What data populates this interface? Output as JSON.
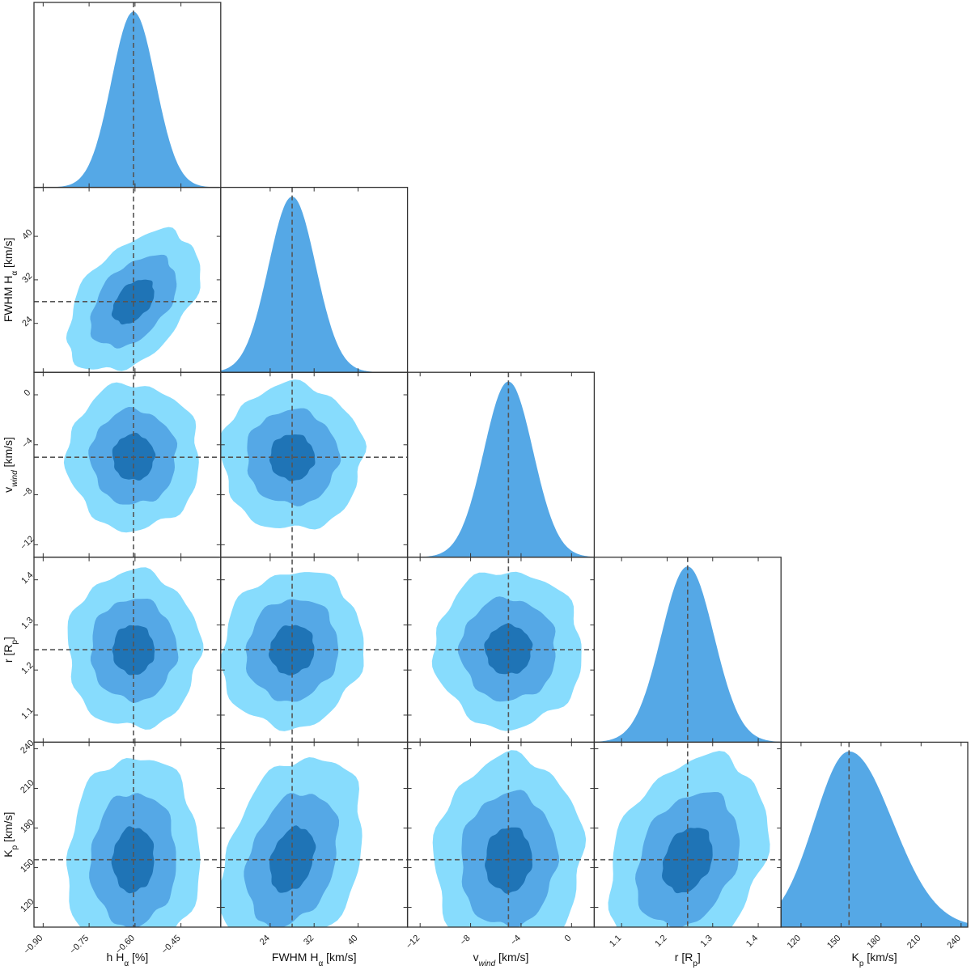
{
  "chart_data": {
    "type": "corner",
    "colors": {
      "sigma3": "#87dcfd",
      "sigma2": "#55a8e6",
      "sigma1": "#1f74b6",
      "histogram": "#55a8e6",
      "truth_line": "#555555"
    },
    "parameters": [
      {
        "id": "h",
        "xlabel_main": "h H",
        "xlabel_sub": "α",
        "xlabel_tail": " [%]",
        "ylabel_main": "",
        "ylabel_sub": "",
        "ylabel_tail": "",
        "range": [
          -0.93,
          -0.32
        ],
        "ticks": [
          -0.9,
          -0.75,
          -0.6,
          -0.45
        ],
        "tick_labels": [
          "−0.90",
          "−0.75",
          "−0.60",
          "−0.45"
        ],
        "best": -0.605,
        "sigma": 0.072
      },
      {
        "id": "fwhm",
        "xlabel_main": "FWHM H",
        "xlabel_sub": "α",
        "xlabel_tail": " [km/s]",
        "ylabel_main": "FWHM H",
        "ylabel_sub": "α",
        "ylabel_tail": " [km/s]",
        "range": [
          15,
          49
        ],
        "ticks": [
          24,
          32,
          40
        ],
        "tick_labels": [
          "24",
          "32",
          "40"
        ],
        "best": 28,
        "sigma": 4.3
      },
      {
        "id": "vwind",
        "xlabel_main": "v",
        "xlabel_sub": "wind",
        "xlabel_tail": " [km/s]",
        "ylabel_main": "v",
        "ylabel_sub": "wind",
        "ylabel_tail": " [km/s]",
        "range": [
          -13,
          1.8
        ],
        "ticks": [
          -12,
          -8,
          -4,
          0
        ],
        "tick_labels": [
          "−12",
          "−8",
          "−4",
          "0"
        ],
        "best": -5.0,
        "sigma": 1.95
      },
      {
        "id": "r",
        "xlabel_main": "r [R",
        "xlabel_sub": "p",
        "xlabel_tail": "]",
        "ylabel_main": "r [R",
        "ylabel_sub": "p",
        "ylabel_tail": "]",
        "range": [
          1.04,
          1.45
        ],
        "ticks": [
          1.1,
          1.2,
          1.3,
          1.4
        ],
        "tick_labels": [
          "1.1",
          "1.2",
          "1.3",
          "1.4"
        ],
        "best": 1.245,
        "sigma": 0.058
      },
      {
        "id": "kp",
        "xlabel_main": "K",
        "xlabel_sub": "p",
        "xlabel_tail": " [km/s]",
        "ylabel_main": "K",
        "ylabel_sub": "p",
        "ylabel_tail": " [km/s]",
        "range": [
          105,
          245
        ],
        "ticks": [
          120,
          150,
          180,
          210,
          240
        ],
        "tick_labels": [
          "120",
          "150",
          "180",
          "210",
          "240"
        ],
        "best": 156,
        "sigma": 26,
        "hist_skew": 1.25
      }
    ],
    "correlations": [
      {
        "x": "h",
        "y": "fwhm",
        "rho": 0.45
      },
      {
        "x": "h",
        "y": "vwind",
        "rho": 0.0
      },
      {
        "x": "fwhm",
        "y": "vwind",
        "rho": 0.0
      },
      {
        "x": "h",
        "y": "r",
        "rho": 0.0
      },
      {
        "x": "fwhm",
        "y": "r",
        "rho": 0.08
      },
      {
        "x": "vwind",
        "y": "r",
        "rho": 0.0
      },
      {
        "x": "h",
        "y": "kp",
        "rho": 0.05
      },
      {
        "x": "fwhm",
        "y": "kp",
        "rho": 0.3
      },
      {
        "x": "vwind",
        "y": "kp",
        "rho": 0.05
      },
      {
        "x": "r",
        "y": "kp",
        "rho": 0.28
      }
    ],
    "contour_levels_sigma": [
      0.95,
      1.95,
      3.0
    ],
    "truth_lines": true
  }
}
